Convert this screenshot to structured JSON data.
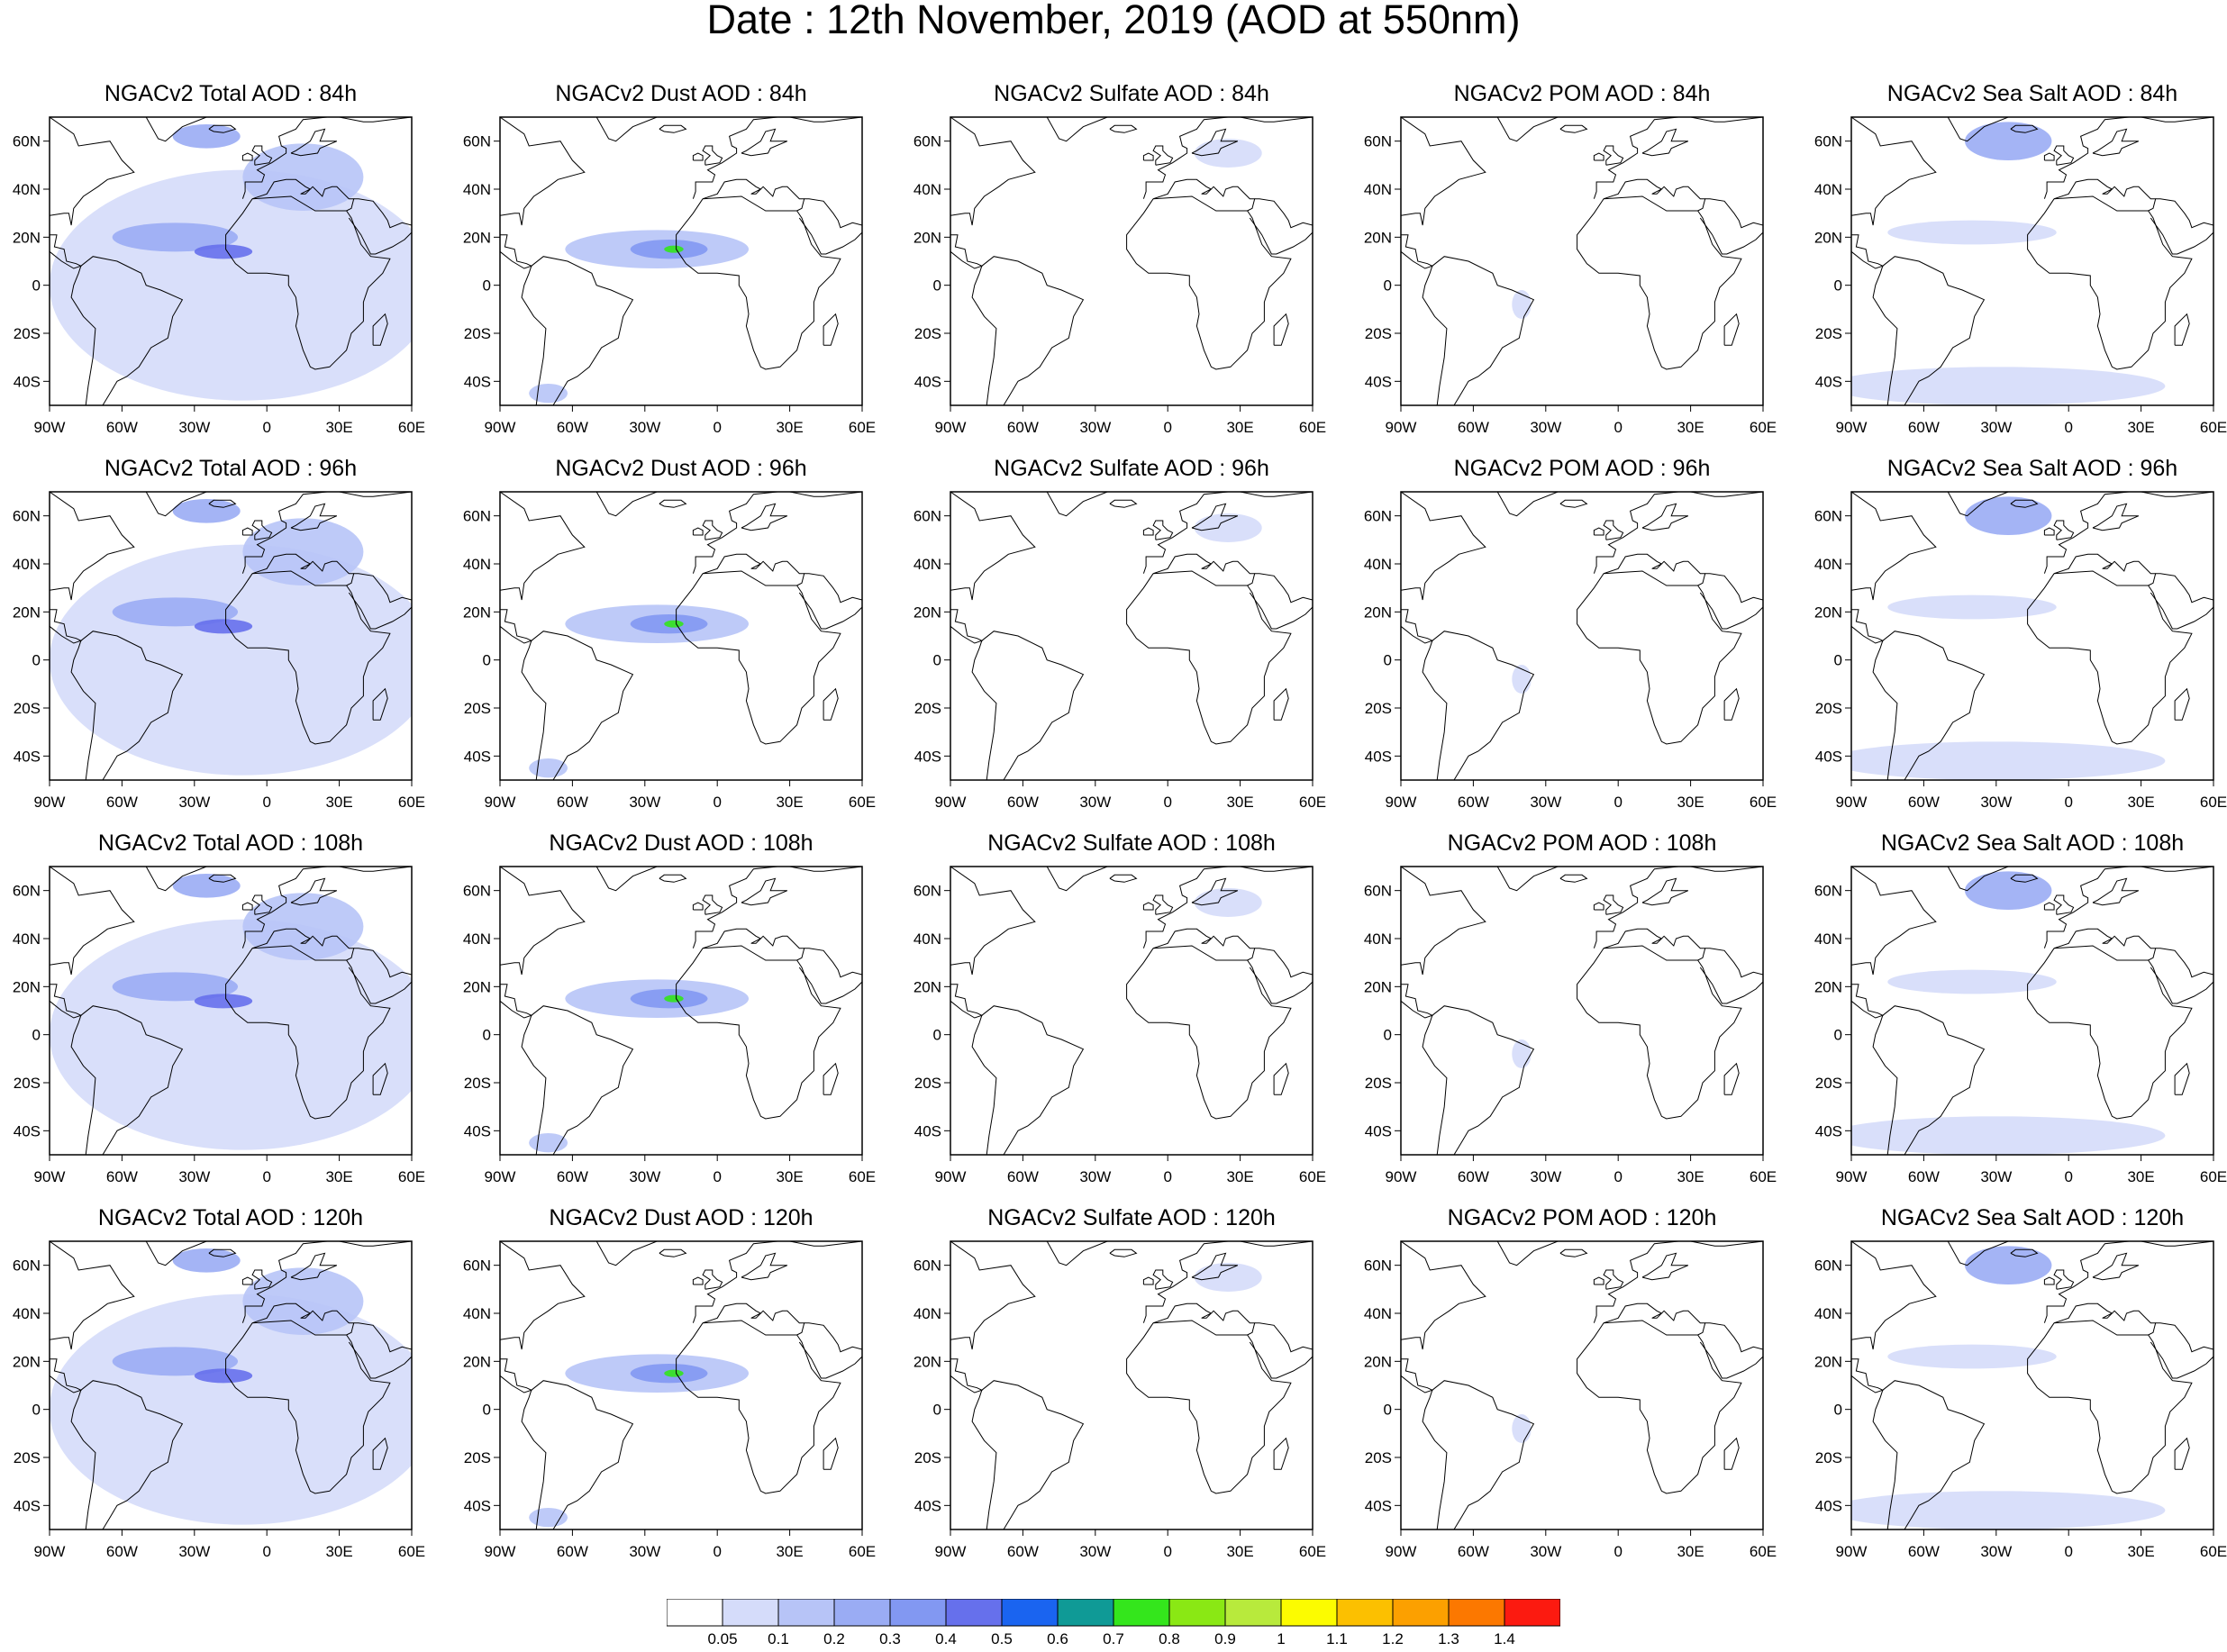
{
  "title": "Date : 12th November, 2019 (AOD at 550nm)",
  "map_axes": {
    "lon_ticks": [
      "90W",
      "60W",
      "30W",
      "0",
      "30E",
      "60E"
    ],
    "lat_ticks": [
      "60N",
      "40N",
      "20N",
      "0",
      "20S",
      "40S"
    ],
    "lon_range": [
      -90,
      60
    ],
    "lat_range": [
      -50,
      70
    ]
  },
  "panels": [
    {
      "title": "NGACv2 Total AOD : 84h",
      "species": "total",
      "forecast_hour": 84
    },
    {
      "title": "NGACv2 Dust AOD : 84h",
      "species": "dust",
      "forecast_hour": 84
    },
    {
      "title": "NGACv2 Sulfate AOD : 84h",
      "species": "sulfate",
      "forecast_hour": 84
    },
    {
      "title": "NGACv2 POM AOD : 84h",
      "species": "pom",
      "forecast_hour": 84
    },
    {
      "title": "NGACv2 Sea Salt AOD : 84h",
      "species": "seasalt",
      "forecast_hour": 84
    },
    {
      "title": "NGACv2 Total AOD : 96h",
      "species": "total",
      "forecast_hour": 96
    },
    {
      "title": "NGACv2 Dust AOD : 96h",
      "species": "dust",
      "forecast_hour": 96
    },
    {
      "title": "NGACv2 Sulfate AOD : 96h",
      "species": "sulfate",
      "forecast_hour": 96
    },
    {
      "title": "NGACv2 POM AOD : 96h",
      "species": "pom",
      "forecast_hour": 96
    },
    {
      "title": "NGACv2 Sea Salt AOD : 96h",
      "species": "seasalt",
      "forecast_hour": 96
    },
    {
      "title": "NGACv2 Total AOD : 108h",
      "species": "total",
      "forecast_hour": 108
    },
    {
      "title": "NGACv2 Dust AOD : 108h",
      "species": "dust",
      "forecast_hour": 108
    },
    {
      "title": "NGACv2 Sulfate AOD : 108h",
      "species": "sulfate",
      "forecast_hour": 108
    },
    {
      "title": "NGACv2 POM AOD : 108h",
      "species": "pom",
      "forecast_hour": 108
    },
    {
      "title": "NGACv2 Sea Salt AOD : 108h",
      "species": "seasalt",
      "forecast_hour": 108
    },
    {
      "title": "NGACv2 Total AOD : 120h",
      "species": "total",
      "forecast_hour": 120
    },
    {
      "title": "NGACv2 Dust AOD : 120h",
      "species": "dust",
      "forecast_hour": 120
    },
    {
      "title": "NGACv2 Sulfate AOD : 120h",
      "species": "sulfate",
      "forecast_hour": 120
    },
    {
      "title": "NGACv2 POM AOD : 120h",
      "species": "pom",
      "forecast_hour": 120
    },
    {
      "title": "NGACv2 Sea Salt  AOD : 120h",
      "species": "seasalt",
      "forecast_hour": 120
    }
  ],
  "colorbar": {
    "labels": [
      "0.05",
      "0.1",
      "0.2",
      "0.3",
      "0.4",
      "0.5",
      "0.6",
      "0.7",
      "0.8",
      "0.9",
      "1",
      "1.1",
      "1.2",
      "1.3",
      "1.4"
    ],
    "colors": [
      "#ffffff",
      "#d5dcfa",
      "#b7c4f7",
      "#9aacf4",
      "#8298f2",
      "#6670ec",
      "#1a64f0",
      "#0f9a96",
      "#34e61c",
      "#8ae814",
      "#b8ea3c",
      "#fcfc00",
      "#fcc000",
      "#fca000",
      "#fc7800",
      "#fc1a10"
    ]
  },
  "plumes": {
    "total": [
      {
        "lon": -10,
        "lat": 0,
        "rlon": 80,
        "rlat": 48,
        "level": 1
      },
      {
        "lon": -38,
        "lat": 20,
        "rlon": 26,
        "rlat": 6,
        "level": 3
      },
      {
        "lon": -18,
        "lat": 14,
        "rlon": 12,
        "rlat": 3,
        "level": 5
      },
      {
        "lon": -25,
        "lat": 62,
        "rlon": 14,
        "rlat": 5,
        "level": 3
      },
      {
        "lon": 15,
        "lat": 45,
        "rlon": 25,
        "rlat": 14,
        "level": 2
      }
    ],
    "dust": [
      {
        "lon": -25,
        "lat": 15,
        "rlon": 38,
        "rlat": 8,
        "level": 2
      },
      {
        "lon": -20,
        "lat": 15,
        "rlon": 16,
        "rlat": 4,
        "level": 4
      },
      {
        "lon": -18,
        "lat": 15,
        "rlon": 4,
        "rlat": 1.5,
        "level": 8
      },
      {
        "lon": -70,
        "lat": -45,
        "rlon": 8,
        "rlat": 4,
        "level": 2
      }
    ],
    "sulfate": [
      {
        "lon": 25,
        "lat": 55,
        "rlon": 14,
        "rlat": 6,
        "level": 1
      }
    ],
    "pom": [
      {
        "lon": -40,
        "lat": -8,
        "rlon": 4,
        "rlat": 6,
        "level": 1
      }
    ],
    "seasalt": [
      {
        "lon": -25,
        "lat": 60,
        "rlon": 18,
        "rlat": 8,
        "level": 3
      },
      {
        "lon": -30,
        "lat": -42,
        "rlon": 70,
        "rlat": 8,
        "level": 1
      },
      {
        "lon": -40,
        "lat": 22,
        "rlon": 35,
        "rlat": 5,
        "level": 1
      }
    ]
  }
}
